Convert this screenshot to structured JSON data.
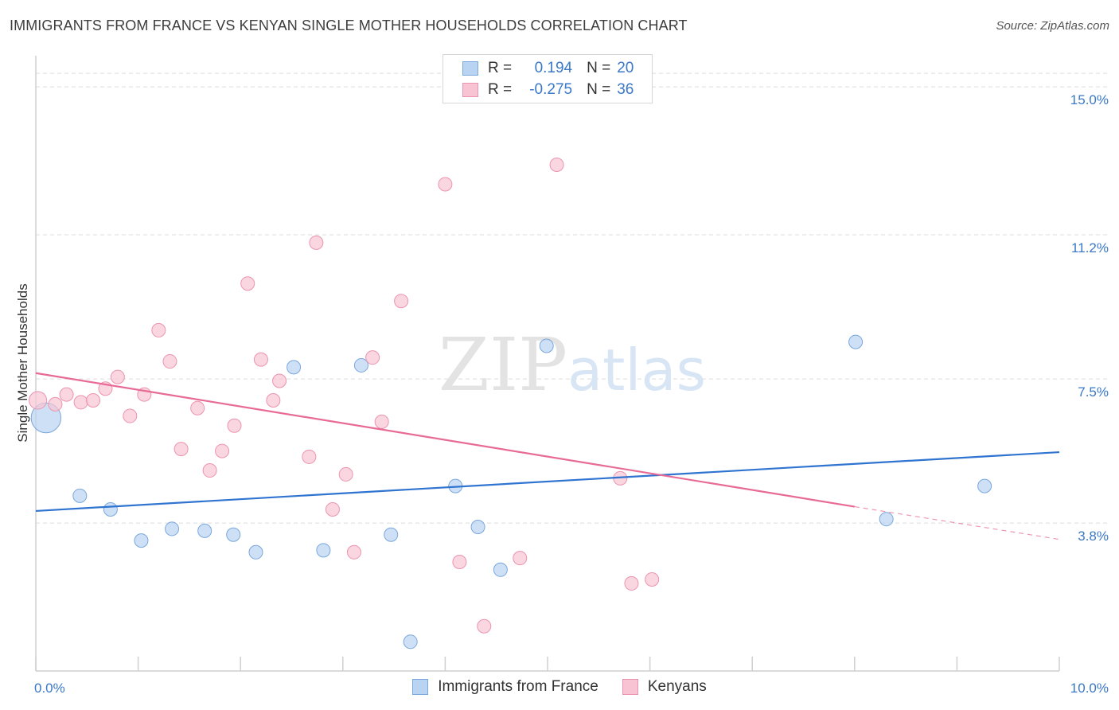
{
  "header": {
    "title": "IMMIGRANTS FROM FRANCE VS KENYAN SINGLE MOTHER HOUSEHOLDS CORRELATION CHART",
    "source": "Source: ZipAtlas.com"
  },
  "watermark": {
    "part1": "ZIP",
    "part2": "atlas"
  },
  "legend": {
    "rows": [
      {
        "r_label": "R =",
        "r_value": "0.194",
        "n_label": "N =",
        "n_value": "20"
      },
      {
        "r_label": "R =",
        "r_value": "-0.275",
        "n_label": "N =",
        "n_value": "36"
      }
    ]
  },
  "colors": {
    "blue_fill": "#b9d3f2",
    "blue_stroke": "#7aa7dc",
    "blue_line": "#2f74d0",
    "pink_fill": "#f8c4d3",
    "pink_stroke": "#ec94af",
    "pink_line": "#e86a96",
    "tick_label": "#3a78c9",
    "grid": "#dcdcdc"
  },
  "chart_data": {
    "type": "scatter",
    "title": "IMMIGRANTS FROM FRANCE VS KENYAN SINGLE MOTHER HOUSEHOLDS CORRELATION CHART",
    "xlabel": "",
    "ylabel": "Single Mother Households",
    "xlim": [
      0,
      10
    ],
    "ylim": [
      0,
      15.8
    ],
    "x_tick_labels": [
      {
        "value": 0,
        "label": "0.0%"
      },
      {
        "value": 10,
        "label": "10.0%"
      }
    ],
    "y_tick_labels": [
      {
        "value": 3.8,
        "label": "3.8%"
      },
      {
        "value": 7.5,
        "label": "7.5%"
      },
      {
        "value": 11.2,
        "label": "11.2%"
      },
      {
        "value": 15.0,
        "label": "15.0%"
      }
    ],
    "grid": true,
    "legend_position": "top-center",
    "series": [
      {
        "name": "Immigrants from France",
        "color": "blue",
        "points": [
          [
            0.1,
            6.5,
            2.2
          ],
          [
            0.43,
            4.5,
            1
          ],
          [
            0.73,
            4.15,
            1
          ],
          [
            1.03,
            3.35,
            1
          ],
          [
            1.33,
            3.65,
            1
          ],
          [
            1.65,
            3.6,
            1
          ],
          [
            1.93,
            3.5,
            1
          ],
          [
            2.15,
            3.05,
            1
          ],
          [
            2.52,
            7.8,
            1
          ],
          [
            2.81,
            3.1,
            1
          ],
          [
            3.18,
            7.85,
            1
          ],
          [
            3.47,
            3.5,
            1
          ],
          [
            3.66,
            0.75,
            1
          ],
          [
            4.1,
            4.75,
            1
          ],
          [
            4.32,
            3.7,
            1
          ],
          [
            4.54,
            2.6,
            1
          ],
          [
            4.99,
            8.35,
            1
          ],
          [
            8.01,
            8.45,
            1
          ],
          [
            8.31,
            3.9,
            1
          ],
          [
            9.27,
            4.75,
            1
          ]
        ],
        "trend": {
          "x": [
            0,
            10
          ],
          "y": [
            4.11,
            5.62
          ]
        }
      },
      {
        "name": "Kenyans",
        "color": "pink",
        "points": [
          [
            0.02,
            6.95,
            1.3
          ],
          [
            0.19,
            6.85,
            1
          ],
          [
            0.3,
            7.1,
            1
          ],
          [
            0.44,
            6.9,
            1
          ],
          [
            0.56,
            6.95,
            1
          ],
          [
            0.68,
            7.25,
            1
          ],
          [
            0.8,
            7.55,
            1
          ],
          [
            0.92,
            6.55,
            1
          ],
          [
            1.06,
            7.1,
            1
          ],
          [
            1.2,
            8.75,
            1
          ],
          [
            1.31,
            7.95,
            1
          ],
          [
            1.42,
            5.7,
            1
          ],
          [
            1.58,
            6.75,
            1
          ],
          [
            1.7,
            5.15,
            1
          ],
          [
            1.82,
            5.65,
            1
          ],
          [
            1.94,
            6.3,
            1
          ],
          [
            2.07,
            9.95,
            1
          ],
          [
            2.2,
            8.0,
            1
          ],
          [
            2.32,
            6.95,
            1
          ],
          [
            2.38,
            7.45,
            1
          ],
          [
            2.67,
            5.5,
            1
          ],
          [
            2.74,
            11.0,
            1
          ],
          [
            2.9,
            4.15,
            1
          ],
          [
            3.03,
            5.05,
            1
          ],
          [
            3.11,
            3.05,
            1
          ],
          [
            3.29,
            8.05,
            1
          ],
          [
            3.38,
            6.4,
            1
          ],
          [
            3.57,
            9.5,
            1
          ],
          [
            4.0,
            12.5,
            1
          ],
          [
            4.14,
            2.8,
            1
          ],
          [
            4.38,
            1.15,
            1
          ],
          [
            4.73,
            2.9,
            1
          ],
          [
            5.09,
            13.0,
            1
          ],
          [
            5.71,
            4.95,
            1
          ],
          [
            5.82,
            2.25,
            1
          ],
          [
            6.02,
            2.35,
            1
          ]
        ],
        "trend": {
          "x": [
            0,
            8.0
          ],
          "y": [
            7.65,
            4.22
          ]
        },
        "trend_dashed": {
          "x": [
            8.0,
            10
          ],
          "y": [
            4.22,
            3.38
          ]
        }
      }
    ]
  }
}
